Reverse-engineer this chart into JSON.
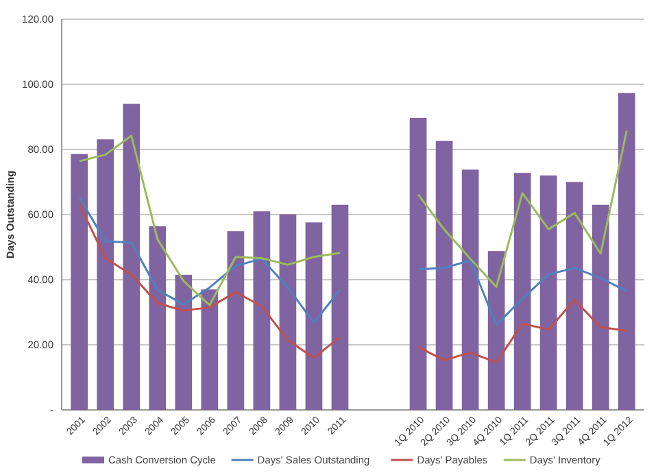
{
  "chart_data": {
    "type": "bar",
    "ylabel": "Days Outstanding",
    "categories": [
      "2001",
      "2002",
      "2003",
      "2004",
      "2005",
      "2006",
      "2007",
      "2008",
      "2009",
      "2010",
      "2011",
      null,
      null,
      "1Q 2010",
      "2Q 2010",
      "3Q 2010",
      "4Q 2010",
      "1Q 2011",
      "2Q 2011",
      "3Q 2011",
      "4Q 2011",
      "1Q 2012"
    ],
    "series": [
      {
        "name": "Cash Conversion Cycle",
        "color": "#8064a2",
        "values": [
          78.6,
          83.1,
          94,
          56.4,
          41.5,
          37,
          54.9,
          61,
          60.1,
          57.6,
          63,
          null,
          null,
          89.7,
          82.6,
          73.8,
          48.8,
          72.8,
          72,
          70,
          63,
          97.3
        ]
      },
      {
        "name": "Days' Sales Outstanding",
        "type": "line",
        "color": "#4f81bd",
        "values": [
          65.3,
          51.8,
          51.4,
          36.9,
          32.4,
          37.6,
          44.3,
          46.4,
          37.6,
          26.8,
          36.9,
          null,
          null,
          43.2,
          43.6,
          45.9,
          26.1,
          34.2,
          41.6,
          43.6,
          40.5,
          36.5
        ]
      },
      {
        "name": "Days' Payables",
        "type": "line",
        "color": "#c0504d",
        "values": [
          63.2,
          46.6,
          41.6,
          32.8,
          30.5,
          31.5,
          36.2,
          31.8,
          21.4,
          16,
          22.4,
          null,
          null,
          19.3,
          15.3,
          17.6,
          14.6,
          26.5,
          24.7,
          33.8,
          25.4,
          24.3
        ]
      },
      {
        "name": "Days' Inventory",
        "type": "line",
        "color": "#9bbb59",
        "values": [
          76.4,
          78.4,
          84.2,
          52.4,
          39.6,
          32.2,
          47,
          46.6,
          44.6,
          47,
          48.2,
          null,
          null,
          66.2,
          55.4,
          46.4,
          37.8,
          66.6,
          55.5,
          60.5,
          48,
          85.8
        ]
      }
    ],
    "ylim": [
      0,
      120
    ],
    "yticks": [
      {
        "value": 0,
        "label": "-"
      },
      {
        "value": 20,
        "label": "20.00"
      },
      {
        "value": 40,
        "label": "40.00"
      },
      {
        "value": 60,
        "label": "60.00"
      },
      {
        "value": 80,
        "label": "80.00"
      },
      {
        "value": 100,
        "label": "100.00"
      },
      {
        "value": 120,
        "label": "120.00"
      }
    ],
    "grid": "y",
    "legend": "bottom",
    "marker": "none",
    "line_style": "solid"
  }
}
